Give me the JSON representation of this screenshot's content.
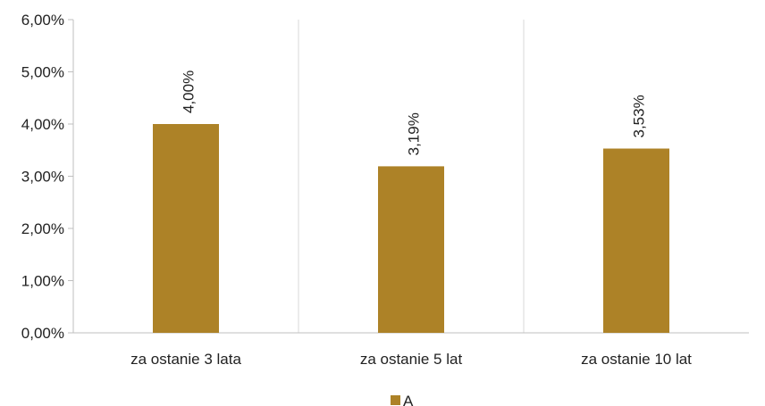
{
  "chart_data": {
    "type": "bar",
    "categories": [
      "za ostanie 3 lata",
      "za ostanie 5 lat",
      "za ostanie 10 lat"
    ],
    "series": [
      {
        "name": "A",
        "values": [
          4.0,
          3.19,
          3.53
        ],
        "data_labels": [
          "4,00%",
          "3,19%",
          "3,53%"
        ],
        "color": "#ad8227"
      }
    ],
    "ylim": [
      0,
      6
    ],
    "yticks": [
      0,
      1,
      2,
      3,
      4,
      5,
      6
    ],
    "ytick_labels": [
      "0,00%",
      "1,00%",
      "2,00%",
      "3,00%",
      "4,00%",
      "5,00%",
      "6,00%"
    ],
    "grid": "vertical separators between categories",
    "legend_position": "bottom"
  },
  "colors": {
    "bar": "#ad8227",
    "axis": "#bfbfbf",
    "grid": "#d9d9d9",
    "text": "#222222"
  }
}
